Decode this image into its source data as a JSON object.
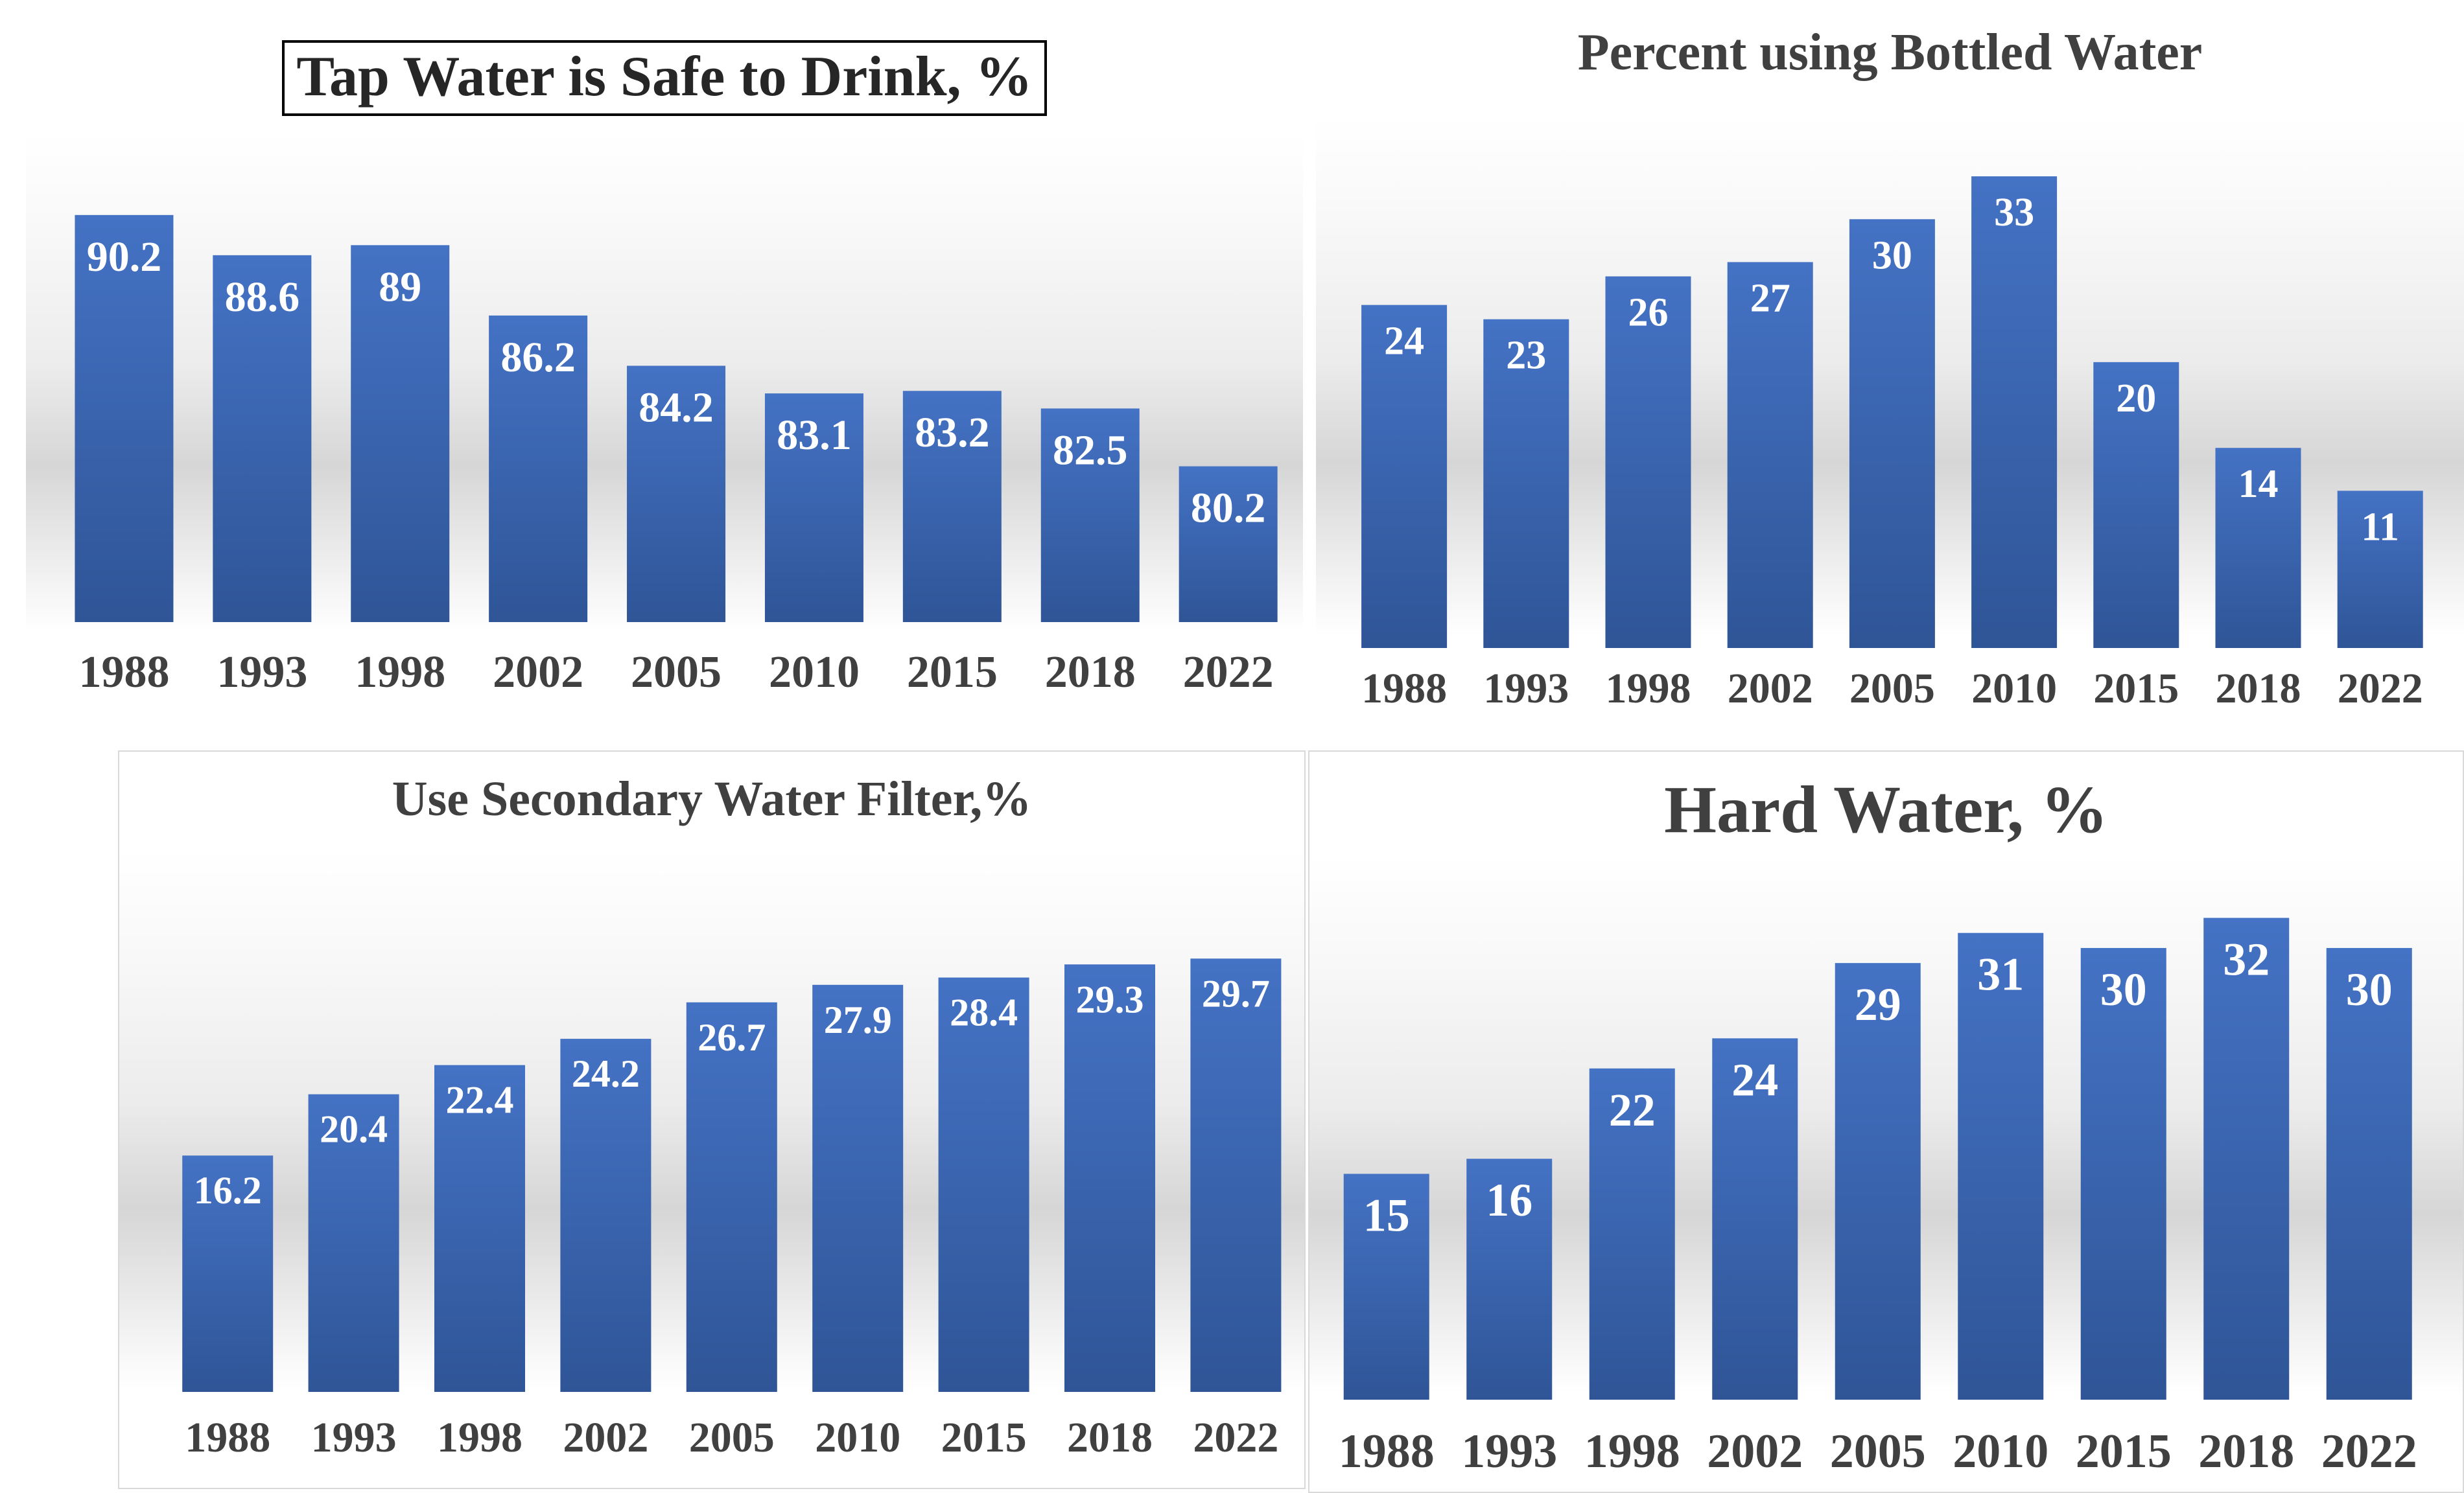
{
  "colors": {
    "bar": "#4472c4",
    "bar_dark": "#2f5597",
    "value_label": "#ffffff",
    "tick_label": "#404040"
  },
  "chart_data": [
    {
      "id": "p1",
      "type": "bar",
      "title": "Tap Water is Safe to Drink, %",
      "categories": [
        "1988",
        "1993",
        "1998",
        "2002",
        "2005",
        "2010",
        "2015",
        "2018",
        "2022"
      ],
      "values": [
        90.2,
        88.6,
        89,
        86.2,
        84.2,
        83.1,
        83.2,
        82.5,
        80.2
      ],
      "xlabel": "",
      "ylabel": "",
      "ylim": [
        74,
        92
      ],
      "grid": false,
      "data_labels": true
    },
    {
      "id": "p2",
      "type": "bar",
      "title": "Percent using Bottled Water",
      "categories": [
        "1988",
        "1993",
        "1998",
        "2002",
        "2005",
        "2010",
        "2015",
        "2018",
        "2022"
      ],
      "values": [
        24,
        23,
        26,
        27,
        30,
        33,
        20,
        14,
        11
      ],
      "xlabel": "",
      "ylabel": "",
      "ylim": [
        0,
        35
      ],
      "grid": false,
      "data_labels": true
    },
    {
      "id": "p3",
      "type": "bar",
      "title": "Use Secondary Water Filter,%",
      "categories": [
        "1988",
        "1993",
        "1998",
        "2002",
        "2005",
        "2010",
        "2015",
        "2018",
        "2022"
      ],
      "values": [
        16.2,
        20.4,
        22.4,
        24.2,
        26.7,
        27.9,
        28.4,
        29.3,
        29.7
      ],
      "xlabel": "",
      "ylabel": "",
      "ylim": [
        0,
        31
      ],
      "grid": false,
      "data_labels": true
    },
    {
      "id": "p4",
      "type": "bar",
      "title": "Hard Water, %",
      "categories": [
        "1988",
        "1993",
        "1998",
        "2002",
        "2005",
        "2010",
        "2015",
        "2018",
        "2022"
      ],
      "values": [
        15,
        16,
        22,
        24,
        29,
        31,
        30,
        32,
        30
      ],
      "xlabel": "",
      "ylabel": "",
      "ylim": [
        0,
        34
      ],
      "grid": false,
      "data_labels": true
    }
  ]
}
